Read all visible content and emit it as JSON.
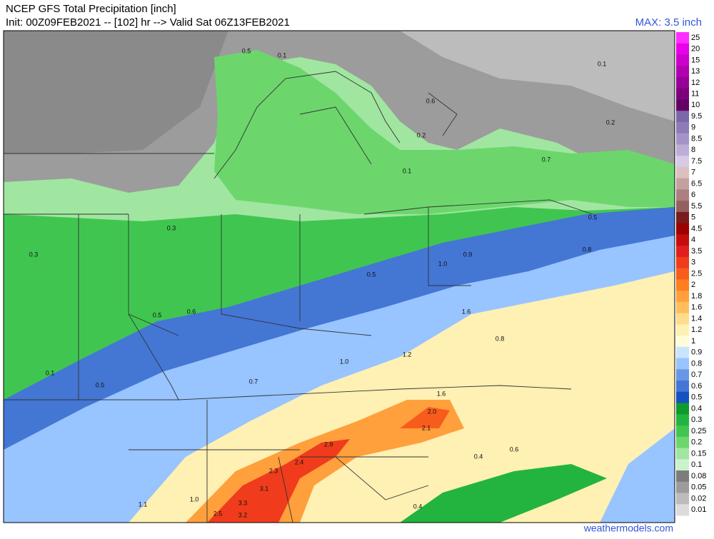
{
  "header": {
    "title": "NCEP GFS Total Precipitation [inch]",
    "subtitle": "Init: 00Z09FEB2021 -- [102] hr --> Valid Sat 06Z13FEB2021",
    "max": "MAX: 3.5 inch"
  },
  "footer": "weathermodels.com",
  "colorbar": {
    "labels": [
      "25",
      "20",
      "15",
      "13",
      "12",
      "11",
      "10",
      "9.5",
      "9",
      "8.5",
      "8",
      "7.5",
      "7",
      "6.5",
      "6",
      "5.5",
      "5",
      "4.5",
      "4",
      "3.5",
      "3",
      "2.5",
      "2",
      "1.8",
      "1.6",
      "1.4",
      "1.2",
      "1",
      "0.9",
      "0.8",
      "0.7",
      "0.6",
      "0.5",
      "0.4",
      "0.3",
      "0.25",
      "0.2",
      "0.15",
      "0.1",
      "0.08",
      "0.05",
      "0.02",
      "0.01"
    ],
    "colors": [
      "#ff2cff",
      "#e800e8",
      "#cc00cc",
      "#b000b0",
      "#960096",
      "#7c007c",
      "#640064",
      "#7b68a8",
      "#8e7cb8",
      "#a494c6",
      "#bcaed6",
      "#d6cae6",
      "#dcc0c0",
      "#c4a0a0",
      "#ac8080",
      "#946060",
      "#7a1c1c",
      "#9c0000",
      "#c40c0c",
      "#e01e1e",
      "#f03c1c",
      "#f85c1c",
      "#ff7e1e",
      "#ffa03c",
      "#ffbe5c",
      "#ffdc8c",
      "#fff0b4",
      "#fffcd8",
      "#c8e4ff",
      "#98c4ff",
      "#6898e4",
      "#4476d4",
      "#1452c2",
      "#0e9a2c",
      "#22b43e",
      "#40c650",
      "#6cd66c",
      "#a0e6a0",
      "#ccf2cc",
      "#7c7c7c",
      "#9c9c9c",
      "#bcbcbc",
      "#dcdcdc"
    ]
  },
  "map_labels": [
    "0.5",
    "0.1",
    "0.6",
    "0.2",
    "0.1",
    "0.7",
    "0.2",
    "0.1",
    "0.3",
    "0.5",
    "0.9",
    "1.0",
    "0.5",
    "0.6",
    "1.6",
    "1.2",
    "1.0",
    "0.7",
    "1.6",
    "2.0",
    "2.1",
    "2.9",
    "2.4",
    "2.3",
    "3.1",
    "3.3",
    "3.2",
    "2.5",
    "1.0",
    "0.5",
    "0.3",
    "0.1",
    "0.8",
    "0.4",
    "0.6",
    "1.1",
    "0.4",
    "0.8",
    "0.5"
  ]
}
